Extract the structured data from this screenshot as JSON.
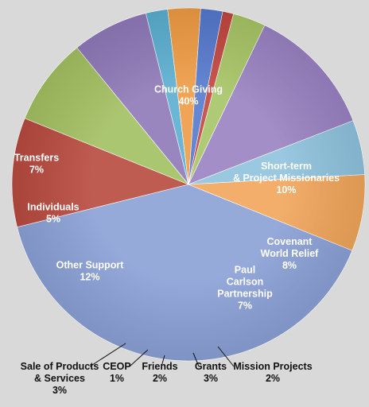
{
  "chart_data": {
    "type": "pie",
    "title": "",
    "slices": [
      {
        "label": [
          "Church Giving"
        ],
        "value": 40,
        "pct": "40%",
        "color": "#8aa0d6"
      },
      {
        "label": [
          "Short-term",
          "& Project Missionaries"
        ],
        "value": 10,
        "pct": "10%",
        "color": "#b84a3f"
      },
      {
        "label": [
          "Covenant",
          "World Relief"
        ],
        "value": 8,
        "pct": "8%",
        "color": "#a2c060"
      },
      {
        "label": [
          "Paul",
          "Carlson",
          "Partnership"
        ],
        "value": 7,
        "pct": "7%",
        "color": "#8f79b8"
      },
      {
        "label": [
          "Mission Projects"
        ],
        "value": 2,
        "pct": "2%",
        "color": "#5aaecf"
      },
      {
        "label": [
          "Grants"
        ],
        "value": 3,
        "pct": "3%",
        "color": "#ee9b43"
      },
      {
        "label": [
          "Friends"
        ],
        "value": 2,
        "pct": "2%",
        "color": "#5478cc"
      },
      {
        "label": [
          "CEOP"
        ],
        "value": 1,
        "pct": "1%",
        "color": "#c0463e"
      },
      {
        "label": [
          "Sale of Products",
          "& Services"
        ],
        "value": 3,
        "pct": "3%",
        "color": "#a6c464"
      },
      {
        "label": [
          "Other Support"
        ],
        "value": 12,
        "pct": "12%",
        "color": "#9a82c2"
      },
      {
        "label": [
          "Individuals"
        ],
        "value": 5,
        "pct": "5%",
        "color": "#8ec2dd"
      },
      {
        "label": [
          "Transfers"
        ],
        "value": 7,
        "pct": "7%",
        "color": "#f0a55a"
      }
    ]
  }
}
